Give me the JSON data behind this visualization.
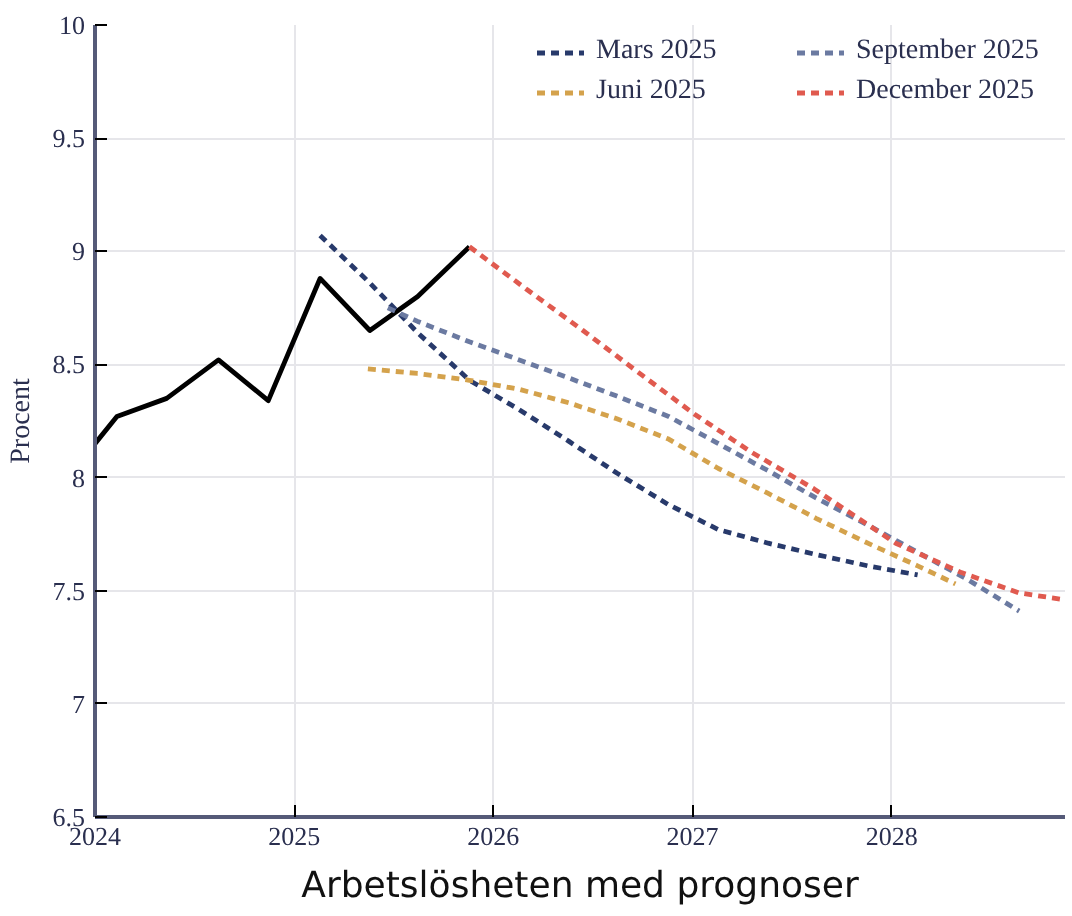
{
  "chart_data": {
    "type": "line",
    "title": "Arbetslösheten med prognoser",
    "ylabel": "Procent",
    "xlim": [
      2024,
      2028.87
    ],
    "xticks": [
      2024,
      2025,
      2026,
      2027,
      2028
    ],
    "ylim": [
      6.5,
      10
    ],
    "yticks": [
      6.5,
      7,
      7.5,
      8,
      8.5,
      9,
      9.5,
      10
    ],
    "grid": true,
    "legend": "top right",
    "marker": "none",
    "series": [
      {
        "color": "#000000",
        "line_style": "solid",
        "x": [
          2024.0,
          2024.11,
          2024.36,
          2024.62,
          2024.87,
          2025.13,
          2025.38,
          2025.62,
          2025.88
        ],
        "values": [
          8.15,
          8.27,
          8.35,
          8.52,
          8.34,
          8.88,
          8.65,
          8.8,
          9.02
        ]
      },
      {
        "name": "Mars 2025",
        "color": "#283a6b",
        "line_style": "dashed",
        "x": [
          2025.13,
          2025.38,
          2025.62,
          2025.88,
          2026.13,
          2026.38,
          2026.62,
          2026.88,
          2027.13,
          2027.38,
          2027.62,
          2027.88,
          2028.13
        ],
        "values": [
          9.07,
          8.86,
          8.64,
          8.43,
          8.3,
          8.16,
          8.02,
          7.88,
          7.77,
          7.71,
          7.66,
          7.61,
          7.57
        ]
      },
      {
        "name": "Juni 2025",
        "color": "#d4a24c",
        "line_style": "dashed",
        "x": [
          2025.37,
          2025.62,
          2025.88,
          2026.13,
          2026.38,
          2026.62,
          2026.88,
          2027.13,
          2027.38,
          2027.62,
          2027.88,
          2028.13,
          2028.32
        ],
        "values": [
          8.48,
          8.46,
          8.43,
          8.39,
          8.33,
          8.26,
          8.17,
          8.04,
          7.93,
          7.82,
          7.71,
          7.61,
          7.53
        ]
      },
      {
        "name": "September 2025",
        "color": "#6b7aa1",
        "line_style": "dashed",
        "x": [
          2025.47,
          2025.62,
          2025.88,
          2026.13,
          2026.38,
          2026.62,
          2026.88,
          2027.13,
          2027.38,
          2027.62,
          2027.88,
          2028.13,
          2028.38,
          2028.64
        ],
        "values": [
          8.75,
          8.69,
          8.6,
          8.52,
          8.44,
          8.36,
          8.27,
          8.15,
          8.03,
          7.91,
          7.79,
          7.67,
          7.55,
          7.41
        ]
      },
      {
        "name": "December 2025",
        "color": "#e05a4f",
        "line_style": "dashed",
        "x": [
          2025.88,
          2026.17,
          2026.45,
          2026.72,
          2027.01,
          2027.3,
          2027.61,
          2028.02,
          2028.35,
          2028.64,
          2028.87
        ],
        "values": [
          9.02,
          8.83,
          8.65,
          8.47,
          8.28,
          8.11,
          7.95,
          7.71,
          7.58,
          7.49,
          7.46
        ]
      }
    ]
  }
}
